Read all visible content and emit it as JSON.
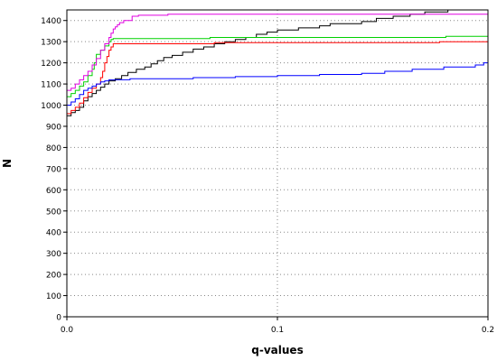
{
  "chart_data": {
    "type": "line",
    "step": true,
    "title": "",
    "xlabel": "q-values",
    "ylabel": "N",
    "xlim": [
      0.0,
      0.2
    ],
    "ylim": [
      0,
      1450
    ],
    "grid": true,
    "x_ticks": [
      0.0,
      0.1,
      0.2
    ],
    "x_tick_labels": [
      "0.0",
      "0.1",
      "0.2"
    ],
    "y_ticks": [
      0,
      100,
      200,
      300,
      400,
      500,
      600,
      700,
      800,
      900,
      1000,
      1100,
      1200,
      1300,
      1400
    ],
    "y_tick_labels": [
      "0",
      "100",
      "200",
      "300",
      "400",
      "500",
      "600",
      "700",
      "800",
      "900",
      "1000",
      "1100",
      "1200",
      "1300",
      "1400"
    ],
    "series": [
      {
        "color": "#000000",
        "points": [
          [
            0.0,
            950
          ],
          [
            0.002,
            965
          ],
          [
            0.004,
            975
          ],
          [
            0.006,
            990
          ],
          [
            0.008,
            1020
          ],
          [
            0.01,
            1040
          ],
          [
            0.012,
            1055
          ],
          [
            0.014,
            1070
          ],
          [
            0.016,
            1085
          ],
          [
            0.018,
            1100
          ],
          [
            0.02,
            1115
          ],
          [
            0.023,
            1125
          ],
          [
            0.026,
            1140
          ],
          [
            0.029,
            1155
          ],
          [
            0.033,
            1170
          ],
          [
            0.037,
            1180
          ],
          [
            0.04,
            1195
          ],
          [
            0.043,
            1210
          ],
          [
            0.046,
            1225
          ],
          [
            0.05,
            1235
          ],
          [
            0.055,
            1250
          ],
          [
            0.06,
            1265
          ],
          [
            0.065,
            1275
          ],
          [
            0.07,
            1290
          ],
          [
            0.075,
            1300
          ],
          [
            0.08,
            1310
          ],
          [
            0.085,
            1320
          ],
          [
            0.09,
            1335
          ],
          [
            0.095,
            1345
          ],
          [
            0.1,
            1355
          ],
          [
            0.11,
            1365
          ],
          [
            0.12,
            1375
          ],
          [
            0.125,
            1385
          ],
          [
            0.14,
            1395
          ],
          [
            0.147,
            1410
          ],
          [
            0.155,
            1420
          ],
          [
            0.163,
            1430
          ],
          [
            0.17,
            1440
          ],
          [
            0.181,
            1450
          ],
          [
            0.2,
            1450
          ]
        ]
      },
      {
        "color": "#ff0000",
        "points": [
          [
            0.0,
            960
          ],
          [
            0.002,
            975
          ],
          [
            0.004,
            990
          ],
          [
            0.006,
            1010
          ],
          [
            0.008,
            1035
          ],
          [
            0.01,
            1060
          ],
          [
            0.012,
            1080
          ],
          [
            0.014,
            1100
          ],
          [
            0.016,
            1130
          ],
          [
            0.017,
            1160
          ],
          [
            0.018,
            1200
          ],
          [
            0.019,
            1230
          ],
          [
            0.02,
            1260
          ],
          [
            0.021,
            1275
          ],
          [
            0.022,
            1290
          ],
          [
            0.07,
            1295
          ],
          [
            0.177,
            1300
          ],
          [
            0.2,
            1300
          ]
        ]
      },
      {
        "color": "#00d000",
        "points": [
          [
            0.0,
            1040
          ],
          [
            0.002,
            1055
          ],
          [
            0.004,
            1070
          ],
          [
            0.006,
            1090
          ],
          [
            0.008,
            1110
          ],
          [
            0.01,
            1140
          ],
          [
            0.012,
            1170
          ],
          [
            0.013,
            1200
          ],
          [
            0.014,
            1240
          ],
          [
            0.016,
            1260
          ],
          [
            0.018,
            1280
          ],
          [
            0.02,
            1300
          ],
          [
            0.021,
            1310
          ],
          [
            0.022,
            1315
          ],
          [
            0.068,
            1320
          ],
          [
            0.18,
            1325
          ],
          [
            0.2,
            1325
          ]
        ]
      },
      {
        "color": "#0000ff",
        "points": [
          [
            0.0,
            1000
          ],
          [
            0.002,
            1015
          ],
          [
            0.004,
            1030
          ],
          [
            0.006,
            1050
          ],
          [
            0.008,
            1070
          ],
          [
            0.01,
            1080
          ],
          [
            0.012,
            1090
          ],
          [
            0.014,
            1100
          ],
          [
            0.016,
            1110
          ],
          [
            0.018,
            1115
          ],
          [
            0.02,
            1120
          ],
          [
            0.03,
            1125
          ],
          [
            0.06,
            1130
          ],
          [
            0.08,
            1135
          ],
          [
            0.1,
            1140
          ],
          [
            0.12,
            1145
          ],
          [
            0.14,
            1150
          ],
          [
            0.151,
            1160
          ],
          [
            0.164,
            1170
          ],
          [
            0.179,
            1180
          ],
          [
            0.194,
            1190
          ],
          [
            0.198,
            1200
          ],
          [
            0.2,
            1200
          ]
        ]
      },
      {
        "color": "#e000e0",
        "points": [
          [
            0.0,
            0
          ],
          [
            0.0,
            1070
          ],
          [
            0.002,
            1080
          ],
          [
            0.004,
            1100
          ],
          [
            0.006,
            1120
          ],
          [
            0.008,
            1140
          ],
          [
            0.01,
            1160
          ],
          [
            0.012,
            1190
          ],
          [
            0.014,
            1220
          ],
          [
            0.016,
            1260
          ],
          [
            0.018,
            1290
          ],
          [
            0.02,
            1320
          ],
          [
            0.021,
            1340
          ],
          [
            0.022,
            1360
          ],
          [
            0.023,
            1370
          ],
          [
            0.024,
            1380
          ],
          [
            0.025,
            1390
          ],
          [
            0.027,
            1400
          ],
          [
            0.031,
            1420
          ],
          [
            0.034,
            1425
          ],
          [
            0.048,
            1430
          ],
          [
            0.2,
            1430
          ]
        ]
      }
    ]
  }
}
